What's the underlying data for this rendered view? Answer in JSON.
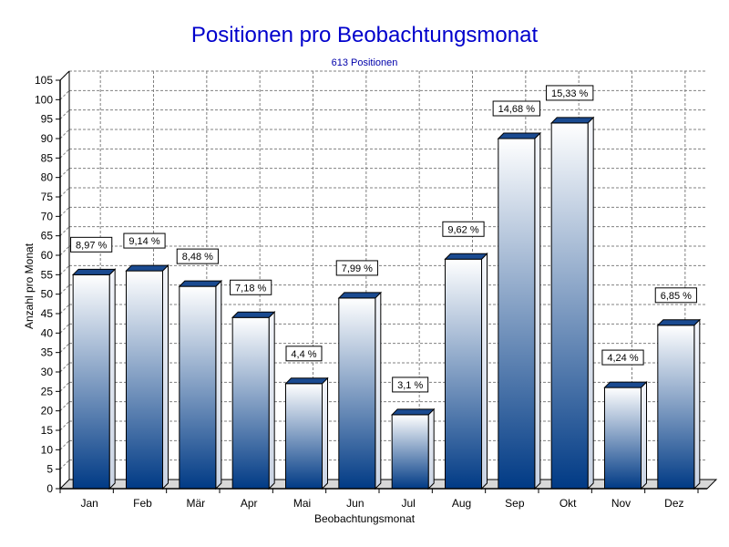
{
  "chart_data": {
    "type": "bar",
    "title": "Positionen pro Beobachtungsmonat",
    "subtitle": "613 Positionen",
    "xlabel": "Beobachtungsmonat",
    "ylabel": "Anzahl pro Monat",
    "categories": [
      "Jan",
      "Feb",
      "Mär",
      "Apr",
      "Mai",
      "Jun",
      "Jul",
      "Aug",
      "Sep",
      "Okt",
      "Nov",
      "Dez"
    ],
    "values": [
      55,
      56,
      52,
      44,
      27,
      49,
      19,
      59,
      90,
      94,
      26,
      42
    ],
    "data_labels": [
      "8,97 %",
      "9,14 %",
      "8,48 %",
      "7,18 %",
      "4,4 %",
      "7,99 %",
      "3,1 %",
      "9,62 %",
      "14,68 %",
      "15,33 %",
      "4,24 %",
      "6,85 %"
    ],
    "ylim": [
      0,
      105
    ],
    "ytick_step": 5,
    "grid": true,
    "colors": {
      "title": "#0000cc",
      "bar_top": "#ffffff",
      "bar_bottom": "#003a85",
      "bar_side": "#e8eef8",
      "bar_cap": "#1a4a90",
      "grid": "#808080",
      "floor": "#d8d8d8"
    }
  }
}
